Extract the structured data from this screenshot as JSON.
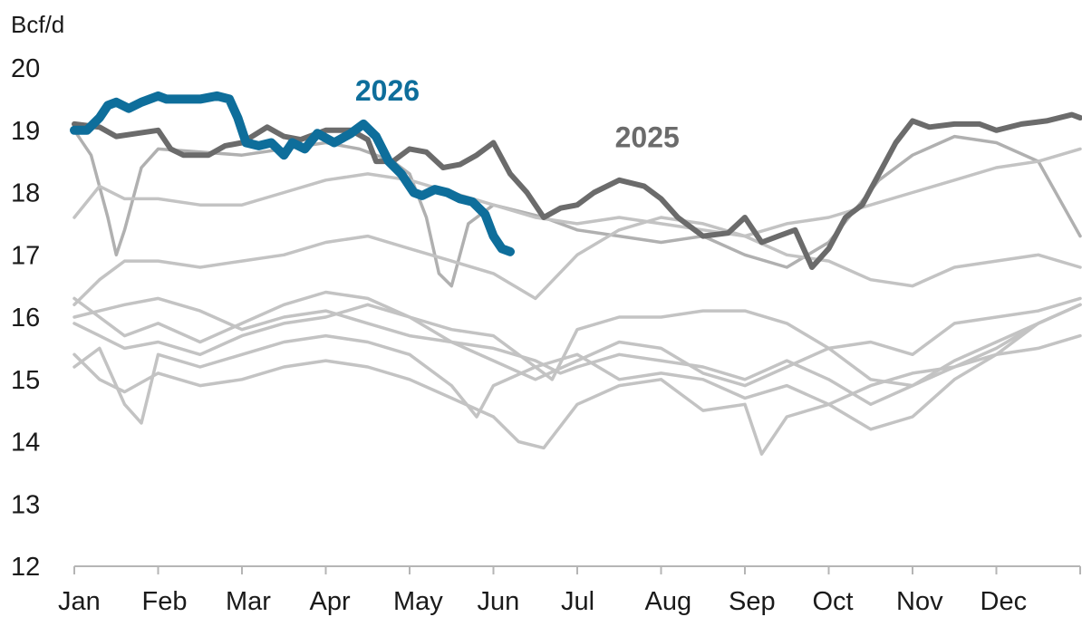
{
  "chart_data": {
    "type": "line",
    "ylabel": "Bcf/d",
    "ylim": [
      12,
      20
    ],
    "yticks": [
      12,
      13,
      14,
      15,
      16,
      17,
      18,
      19,
      20
    ],
    "xlim": [
      0,
      12
    ],
    "month_labels": [
      "Jan",
      "Feb",
      "Mar",
      "Apr",
      "May",
      "Jun",
      "Jul",
      "Aug",
      "Sep",
      "Oct",
      "Nov",
      "Dec"
    ],
    "grid": false,
    "legend": "none",
    "colors": {
      "highlight_2026": "#0e6e9b",
      "highlight_2025": "#6b6b6b",
      "history": "#c3c3c3",
      "history_dark": "#b0b0b0",
      "axis": "#b5b5b5"
    },
    "series": [
      {
        "name": "2026",
        "label": "2026",
        "color": "#0e6e9b",
        "x": [
          0.0,
          0.15,
          0.3,
          0.4,
          0.5,
          0.65,
          0.8,
          1.0,
          1.1,
          1.3,
          1.5,
          1.7,
          1.85,
          1.95,
          2.05,
          2.2,
          2.35,
          2.5,
          2.6,
          2.75,
          2.9,
          3.1,
          3.3,
          3.45,
          3.6,
          3.75,
          3.9,
          4.05,
          4.15,
          4.3,
          4.45,
          4.6,
          4.75,
          4.9,
          5.0,
          5.1,
          5.2
        ],
        "y": [
          19.0,
          19.0,
          19.2,
          19.4,
          19.45,
          19.35,
          19.45,
          19.55,
          19.5,
          19.5,
          19.5,
          19.55,
          19.5,
          19.2,
          18.8,
          18.75,
          18.8,
          18.6,
          18.8,
          18.7,
          18.95,
          18.8,
          18.95,
          19.1,
          18.9,
          18.5,
          18.3,
          18.0,
          17.95,
          18.05,
          18.0,
          17.9,
          17.85,
          17.65,
          17.3,
          17.1,
          17.05
        ]
      },
      {
        "name": "2025",
        "label": "2025",
        "color": "#6b6b6b",
        "x": [
          0.0,
          0.3,
          0.5,
          0.75,
          1.0,
          1.15,
          1.3,
          1.6,
          1.8,
          2.0,
          2.3,
          2.5,
          2.7,
          3.0,
          3.3,
          3.5,
          3.6,
          3.8,
          4.0,
          4.2,
          4.4,
          4.6,
          4.8,
          5.0,
          5.2,
          5.4,
          5.6,
          5.8,
          6.0,
          6.2,
          6.5,
          6.8,
          7.0,
          7.2,
          7.5,
          7.8,
          8.0,
          8.2,
          8.4,
          8.6,
          8.8,
          9.0,
          9.2,
          9.4,
          9.6,
          9.8,
          10.0,
          10.2,
          10.5,
          10.8,
          11.0,
          11.3,
          11.6,
          11.9,
          12.0
        ],
        "y": [
          19.1,
          19.05,
          18.9,
          18.95,
          19.0,
          18.7,
          18.6,
          18.6,
          18.75,
          18.8,
          19.05,
          18.9,
          18.85,
          19.0,
          19.0,
          18.85,
          18.5,
          18.5,
          18.7,
          18.65,
          18.4,
          18.45,
          18.6,
          18.8,
          18.3,
          18.0,
          17.6,
          17.75,
          17.8,
          18.0,
          18.2,
          18.1,
          17.9,
          17.6,
          17.3,
          17.35,
          17.6,
          17.2,
          17.3,
          17.4,
          16.8,
          17.1,
          17.6,
          17.8,
          18.3,
          18.8,
          19.15,
          19.05,
          19.1,
          19.1,
          19.0,
          19.1,
          19.15,
          19.25,
          19.2
        ]
      },
      {
        "name": "",
        "color": "#b0b0b0",
        "x": [
          0.0,
          0.2,
          0.4,
          0.5,
          0.6,
          0.8,
          1.0,
          1.5,
          2.0,
          2.5,
          3.0,
          3.4,
          3.8,
          4.0,
          4.2,
          4.35,
          4.5,
          4.7,
          5.0,
          5.3,
          5.6,
          6.0,
          6.5,
          7.0,
          7.5,
          8.0,
          8.5,
          9.0,
          9.3,
          9.6,
          10.0,
          10.5,
          11.0,
          11.5,
          12.0
        ],
        "y": [
          19.0,
          18.6,
          17.6,
          17.0,
          17.4,
          18.4,
          18.7,
          18.65,
          18.6,
          18.7,
          18.8,
          18.7,
          18.5,
          18.3,
          17.6,
          16.7,
          16.5,
          17.5,
          17.8,
          17.7,
          17.6,
          17.4,
          17.3,
          17.2,
          17.3,
          17.0,
          16.8,
          17.2,
          17.7,
          18.2,
          18.6,
          18.9,
          18.8,
          18.5,
          17.3
        ]
      },
      {
        "name": "",
        "color": "#c3c3c3",
        "x": [
          0.0,
          0.3,
          0.6,
          1.0,
          1.5,
          2.0,
          2.5,
          3.0,
          3.5,
          4.0,
          4.5,
          5.0,
          5.5,
          6.0,
          6.5,
          7.0,
          7.5,
          8.0,
          8.5,
          9.0,
          9.5,
          10.0,
          10.5,
          11.0,
          11.5,
          12.0
        ],
        "y": [
          17.6,
          18.1,
          17.9,
          17.9,
          17.8,
          17.8,
          18.0,
          18.2,
          18.3,
          18.2,
          18.0,
          17.8,
          17.6,
          17.5,
          17.6,
          17.5,
          17.4,
          17.3,
          17.5,
          17.6,
          17.8,
          18.0,
          18.2,
          18.4,
          18.5,
          18.7
        ]
      },
      {
        "name": "",
        "color": "#c3c3c3",
        "x": [
          0.0,
          0.3,
          0.6,
          1.0,
          1.5,
          2.0,
          2.5,
          3.0,
          3.5,
          4.0,
          4.5,
          5.0,
          5.5,
          6.0,
          6.5,
          7.0,
          7.5,
          8.0,
          8.5,
          9.0,
          9.5,
          10.0,
          10.5,
          11.0,
          11.5,
          12.0
        ],
        "y": [
          16.2,
          16.6,
          16.9,
          16.9,
          16.8,
          16.9,
          17.0,
          17.2,
          17.3,
          17.1,
          16.9,
          16.7,
          16.3,
          17.0,
          17.4,
          17.6,
          17.5,
          17.3,
          17.0,
          16.9,
          16.6,
          16.5,
          16.8,
          16.9,
          17.0,
          16.8
        ]
      },
      {
        "name": "",
        "color": "#c3c3c3",
        "x": [
          0.0,
          0.3,
          0.6,
          1.0,
          1.5,
          2.0,
          2.5,
          3.0,
          3.5,
          4.0,
          4.5,
          5.0,
          5.4,
          5.7,
          6.0,
          6.5,
          7.0,
          7.5,
          8.0,
          8.5,
          9.0,
          9.5,
          10.0,
          10.5,
          11.0,
          11.5,
          12.0
        ],
        "y": [
          15.9,
          15.7,
          15.5,
          15.6,
          15.4,
          15.7,
          15.9,
          16.0,
          16.2,
          16.0,
          15.8,
          15.7,
          15.3,
          15.0,
          15.8,
          16.0,
          16.0,
          16.1,
          16.1,
          15.9,
          15.5,
          15.6,
          15.4,
          15.9,
          16.0,
          16.1,
          16.3
        ]
      },
      {
        "name": "",
        "color": "#c3c3c3",
        "x": [
          0.0,
          0.3,
          0.6,
          1.0,
          1.5,
          2.0,
          2.5,
          3.0,
          3.5,
          4.0,
          4.5,
          5.0,
          5.5,
          6.0,
          6.5,
          7.0,
          7.5,
          8.0,
          8.5,
          9.0,
          9.5,
          10.0,
          10.5,
          11.0,
          11.5,
          12.0
        ],
        "y": [
          16.3,
          16.0,
          15.7,
          15.9,
          15.6,
          15.9,
          16.2,
          16.4,
          16.3,
          16.0,
          15.6,
          15.3,
          15.0,
          15.3,
          15.6,
          15.5,
          15.1,
          14.9,
          15.2,
          15.5,
          15.0,
          14.9,
          15.2,
          15.5,
          15.9,
          16.2
        ]
      },
      {
        "name": "",
        "color": "#c3c3c3",
        "x": [
          0.0,
          0.3,
          0.6,
          0.8,
          1.0,
          1.5,
          2.0,
          2.5,
          3.0,
          3.5,
          4.0,
          4.5,
          4.8,
          5.0,
          5.5,
          6.0,
          6.5,
          7.0,
          7.5,
          8.0,
          8.5,
          9.0,
          9.5,
          10.0,
          10.5,
          11.0,
          11.5,
          12.0
        ],
        "y": [
          15.2,
          15.5,
          14.6,
          14.3,
          15.4,
          15.2,
          15.4,
          15.6,
          15.7,
          15.6,
          15.4,
          14.9,
          14.4,
          14.9,
          15.2,
          15.4,
          15.0,
          15.1,
          15.0,
          14.7,
          14.9,
          14.6,
          14.9,
          15.1,
          15.2,
          15.4,
          15.5,
          15.7
        ]
      },
      {
        "name": "",
        "color": "#c3c3c3",
        "x": [
          0.0,
          0.3,
          0.6,
          1.0,
          1.5,
          2.0,
          2.5,
          3.0,
          3.5,
          4.0,
          4.5,
          5.0,
          5.3,
          5.6,
          6.0,
          6.5,
          7.0,
          7.5,
          8.0,
          8.2,
          8.5,
          9.0,
          9.5,
          10.0,
          10.5,
          11.0,
          11.5,
          12.0
        ],
        "y": [
          15.4,
          15.0,
          14.8,
          15.1,
          14.9,
          15.0,
          15.2,
          15.3,
          15.2,
          15.0,
          14.7,
          14.4,
          14.0,
          13.9,
          14.6,
          14.9,
          15.0,
          14.5,
          14.6,
          13.8,
          14.4,
          14.6,
          14.2,
          14.4,
          15.0,
          15.4,
          15.9,
          16.2
        ]
      },
      {
        "name": "",
        "color": "#c3c3c3",
        "x": [
          0.0,
          0.3,
          0.6,
          1.0,
          1.5,
          2.0,
          2.5,
          3.0,
          3.5,
          4.0,
          4.5,
          5.0,
          5.5,
          5.8,
          6.0,
          6.5,
          7.0,
          7.5,
          8.0,
          8.5,
          9.0,
          9.5,
          10.0,
          10.5,
          11.0,
          11.5,
          12.0
        ],
        "y": [
          16.0,
          16.1,
          16.2,
          16.3,
          16.1,
          15.8,
          16.0,
          16.1,
          15.9,
          15.7,
          15.6,
          15.5,
          15.3,
          15.1,
          15.2,
          15.4,
          15.3,
          15.2,
          15.0,
          15.3,
          15.0,
          14.6,
          14.9,
          15.3,
          15.6,
          15.9,
          16.2
        ]
      }
    ]
  }
}
